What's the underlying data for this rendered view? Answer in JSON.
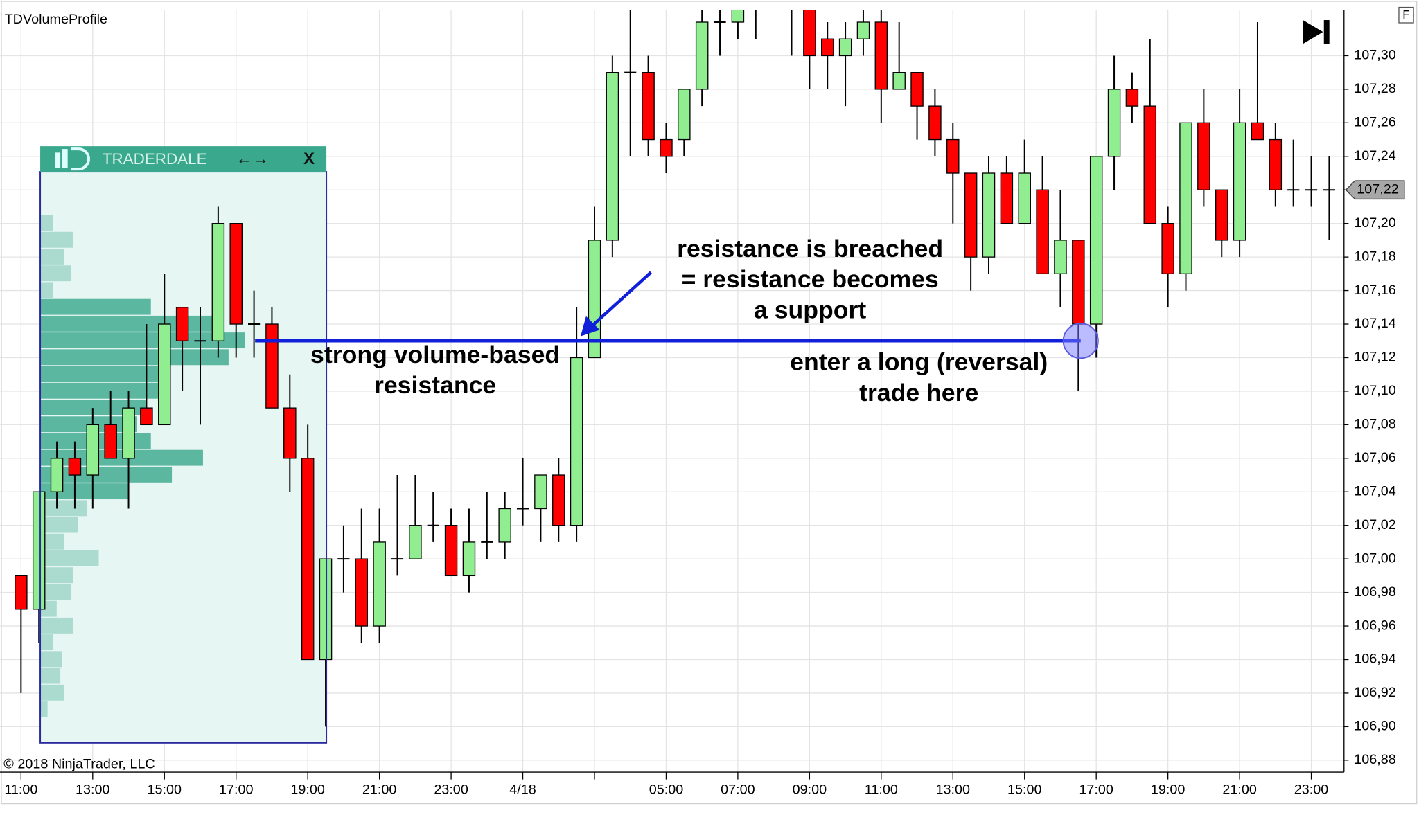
{
  "chart_data": {
    "type": "candlestick",
    "title": "TDVolumeProfile",
    "copyright": "© 2018 NinjaTrader, LLC",
    "panel_title": "TRADERDALE",
    "panel_arrows": "←→",
    "panel_close": "X",
    "corner_label": "F",
    "categories": [
      "11:00",
      null,
      null,
      null,
      "13:00",
      null,
      null,
      null,
      "15:00",
      null,
      null,
      null,
      "17:00",
      null,
      null,
      null,
      "19:00",
      null,
      null,
      null,
      "21:00",
      null,
      null,
      null,
      "23:00",
      null,
      null,
      null,
      "4/18",
      null,
      null,
      null,
      null,
      null,
      null,
      null,
      "05:00",
      null,
      null,
      null,
      "07:00",
      null,
      null,
      null,
      "09:00",
      null,
      null,
      null,
      "11:00",
      null,
      null,
      null,
      "13:00",
      null,
      null,
      null,
      "15:00",
      null,
      null,
      null,
      "17:00",
      null,
      null,
      null,
      "19:00",
      null,
      null,
      null,
      "21:00",
      null,
      null,
      null,
      "23:00",
      null
    ],
    "open": [
      106.99,
      106.97,
      107.04,
      107.06,
      107.05,
      107.08,
      107.06,
      107.09,
      107.08,
      107.15,
      107.13,
      107.13,
      107.2,
      107.14,
      107.14,
      107.09,
      107.06,
      106.94,
      107.0,
      107.0,
      106.96,
      107.0,
      107.0,
      107.02,
      107.02,
      106.99,
      107.01,
      107.01,
      107.03,
      107.03,
      107.05,
      107.02,
      107.12,
      107.19,
      107.29,
      107.29,
      107.25,
      107.25,
      107.28,
      107.32,
      107.32,
      107.33,
      107.34,
      107.33,
      107.33,
      107.31,
      107.3,
      107.31,
      107.32,
      107.28,
      107.29,
      107.27,
      107.25,
      107.23,
      107.18,
      107.23,
      107.2,
      107.22,
      107.17,
      107.19,
      107.14,
      107.24,
      107.28,
      107.27,
      107.2,
      107.17,
      107.26,
      107.22,
      107.19,
      107.26,
      107.25,
      107.22,
      107.22,
      107.22
    ],
    "high": [
      106.99,
      107.04,
      107.07,
      107.07,
      107.09,
      107.1,
      107.1,
      107.14,
      107.17,
      107.15,
      107.15,
      107.21,
      107.2,
      107.16,
      107.15,
      107.11,
      107.08,
      107.0,
      107.02,
      107.03,
      107.03,
      107.05,
      107.05,
      107.04,
      107.03,
      107.03,
      107.04,
      107.04,
      107.06,
      107.05,
      107.06,
      107.15,
      107.21,
      107.3,
      107.33,
      107.3,
      107.26,
      107.28,
      107.33,
      107.33,
      107.33,
      107.33,
      107.36,
      107.34,
      107.34,
      107.32,
      107.32,
      107.33,
      107.33,
      107.32,
      107.29,
      107.28,
      107.26,
      107.23,
      107.24,
      107.24,
      107.25,
      107.24,
      107.22,
      107.19,
      107.24,
      107.3,
      107.29,
      107.31,
      107.21,
      107.26,
      107.28,
      107.22,
      107.28,
      107.32,
      107.26,
      107.25,
      107.24,
      107.24
    ],
    "low": [
      106.92,
      106.95,
      107.03,
      107.03,
      107.03,
      107.06,
      107.03,
      107.08,
      107.08,
      107.1,
      107.08,
      107.12,
      107.12,
      107.12,
      107.09,
      107.04,
      106.94,
      106.9,
      106.98,
      106.95,
      106.95,
      106.99,
      107.0,
      107.01,
      106.99,
      106.98,
      107.0,
      107.0,
      107.02,
      107.01,
      107.01,
      107.01,
      107.12,
      107.18,
      107.24,
      107.24,
      107.23,
      107.24,
      107.27,
      107.3,
      107.31,
      107.31,
      107.33,
      107.3,
      107.28,
      107.28,
      107.27,
      107.3,
      107.26,
      107.28,
      107.25,
      107.24,
      107.2,
      107.16,
      107.17,
      107.2,
      107.2,
      107.17,
      107.15,
      107.1,
      107.12,
      107.22,
      107.26,
      107.2,
      107.15,
      107.16,
      107.21,
      107.18,
      107.18,
      107.25,
      107.21,
      107.21,
      107.21,
      107.19
    ],
    "close": [
      106.97,
      107.04,
      107.06,
      107.05,
      107.08,
      107.06,
      107.09,
      107.08,
      107.14,
      107.13,
      107.13,
      107.2,
      107.14,
      107.14,
      107.09,
      107.06,
      106.94,
      107.0,
      107.0,
      106.96,
      107.01,
      107.0,
      107.02,
      107.02,
      106.99,
      107.01,
      107.01,
      107.03,
      107.03,
      107.05,
      107.02,
      107.12,
      107.19,
      107.29,
      107.29,
      107.25,
      107.24,
      107.28,
      107.32,
      107.32,
      107.33,
      107.33,
      107.35,
      107.33,
      107.3,
      107.3,
      107.31,
      107.32,
      107.28,
      107.29,
      107.27,
      107.25,
      107.23,
      107.18,
      107.23,
      107.2,
      107.23,
      107.17,
      107.19,
      107.14,
      107.24,
      107.28,
      107.27,
      107.2,
      107.17,
      107.26,
      107.22,
      107.19,
      107.26,
      107.25,
      107.22,
      107.22,
      107.22,
      107.22
    ],
    "up_color": "#90ee90",
    "down_color": "#ff0000",
    "ylim": [
      106.873,
      107.327
    ],
    "yticks": [
      {
        "value": 107.3,
        "label": "107,30"
      },
      {
        "value": 107.28,
        "label": "107,28"
      },
      {
        "value": 107.26,
        "label": "107,26"
      },
      {
        "value": 107.24,
        "label": "107,24"
      },
      {
        "value": 107.22,
        "label": "107,22"
      },
      {
        "value": 107.2,
        "label": "107,20"
      },
      {
        "value": 107.18,
        "label": "107,18"
      },
      {
        "value": 107.16,
        "label": "107,16"
      },
      {
        "value": 107.14,
        "label": "107,14"
      },
      {
        "value": 107.12,
        "label": "107,12"
      },
      {
        "value": 107.1,
        "label": "107,10"
      },
      {
        "value": 107.08,
        "label": "107,08"
      },
      {
        "value": 107.06,
        "label": "107,06"
      },
      {
        "value": 107.04,
        "label": "107,04"
      },
      {
        "value": 107.02,
        "label": "107,02"
      },
      {
        "value": 107.0,
        "label": "107,00"
      },
      {
        "value": 106.98,
        "label": "106,98"
      },
      {
        "value": 106.96,
        "label": "106,96"
      },
      {
        "value": 106.94,
        "label": "106,94"
      },
      {
        "value": 106.92,
        "label": "106,92"
      },
      {
        "value": 106.9,
        "label": "106,90"
      },
      {
        "value": 106.88,
        "label": "106,88"
      }
    ],
    "grid": true,
    "last_price": {
      "value": 107.22,
      "label": "107,22"
    },
    "resistance_level": 107.13,
    "volume_profile": {
      "color": "#3aa88c",
      "prices": [
        107.2,
        107.19,
        107.18,
        107.17,
        107.16,
        107.15,
        107.14,
        107.13,
        107.12,
        107.11,
        107.1,
        107.09,
        107.08,
        107.07,
        107.06,
        107.05,
        107.04,
        107.03,
        107.02,
        107.01,
        107.0,
        106.99,
        106.98,
        106.97,
        106.96,
        106.95,
        106.94,
        106.93,
        106.92,
        106.91
      ],
      "volumes": [
        14,
        36,
        26,
        34,
        14,
        121,
        201,
        224,
        206,
        141,
        131,
        116,
        106,
        121,
        178,
        144,
        96,
        51,
        41,
        26,
        64,
        36,
        34,
        18,
        36,
        14,
        24,
        22,
        26,
        8
      ]
    },
    "annotations": [
      [
        "strong volume-based",
        "resistance"
      ],
      [
        "resistance is breached",
        "= resistance becomes",
        "a support"
      ],
      [
        "enter a long (reversal)",
        "trade here"
      ]
    ]
  }
}
